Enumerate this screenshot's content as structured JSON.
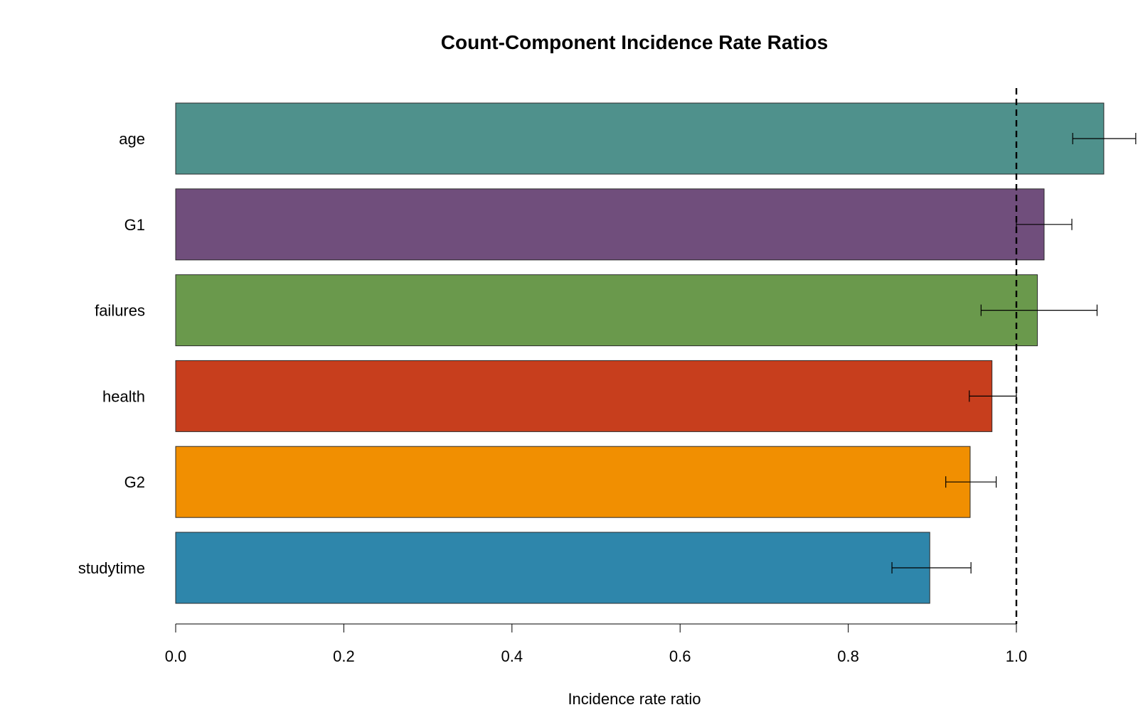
{
  "chart_data": {
    "type": "bar",
    "orientation": "horizontal",
    "title": "Count-Component Incidence Rate Ratios",
    "xlabel": "Incidence rate ratio",
    "ylabel": "",
    "xlim": [
      0,
      1.1
    ],
    "x_ticks": [
      0.0,
      0.2,
      0.4,
      0.6,
      0.8,
      1.0
    ],
    "x_tick_labels": [
      "0.0",
      "0.2",
      "0.4",
      "0.6",
      "0.8",
      "1.0"
    ],
    "reference_line": {
      "value": 1.0,
      "style": "dashed"
    },
    "grid": false,
    "legend": "none",
    "categories": [
      "age",
      "G1",
      "failures",
      "health",
      "G2",
      "studytime"
    ],
    "values": [
      1.104,
      1.033,
      1.025,
      0.971,
      0.945,
      0.897
    ],
    "ci_lower": [
      1.067,
      1.0,
      0.958,
      0.944,
      0.916,
      0.852
    ],
    "ci_upper": [
      1.142,
      1.066,
      1.096,
      1.0,
      0.976,
      0.946
    ],
    "colors": [
      "#4F918C",
      "#704E7C",
      "#6A994C",
      "#C73E1D",
      "#F18F01",
      "#2E86AB"
    ]
  }
}
